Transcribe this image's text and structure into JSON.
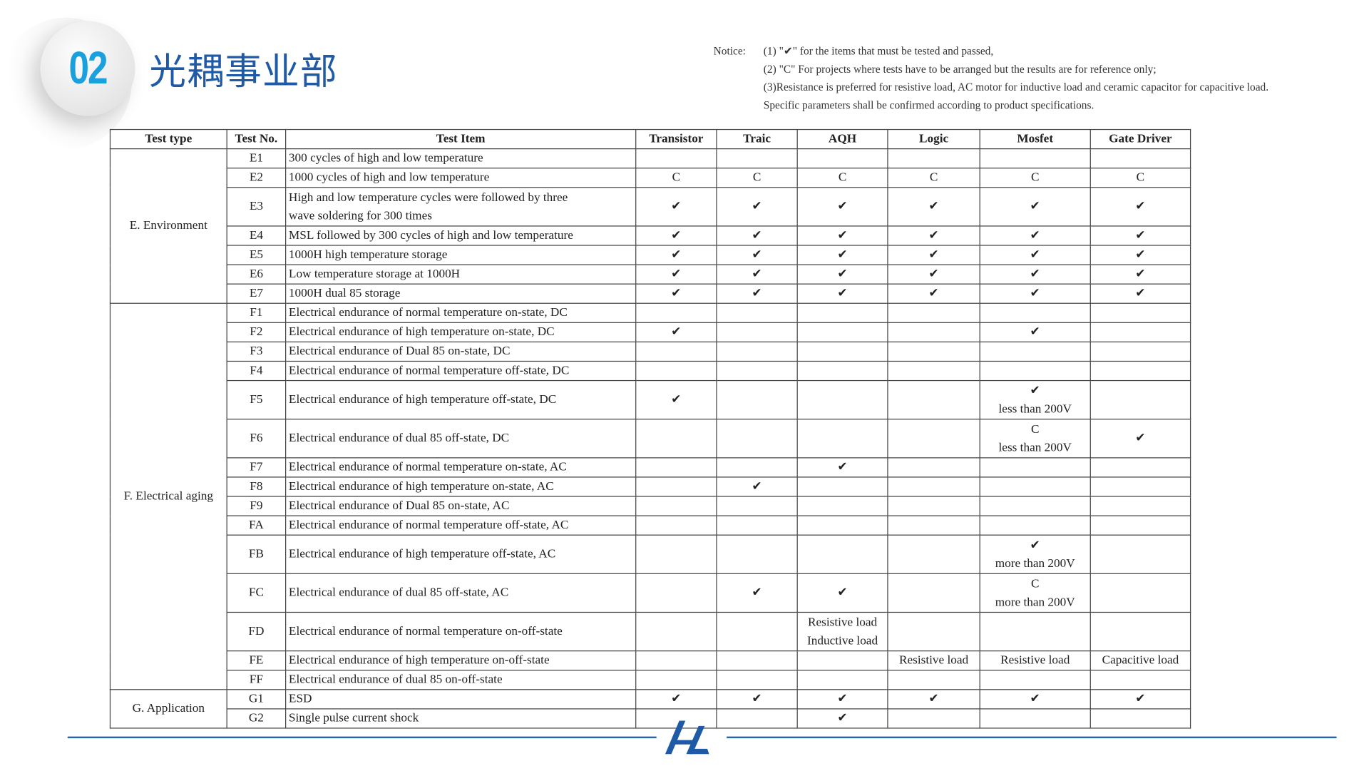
{
  "header": {
    "badge_number": "02",
    "title": "光耦事业部"
  },
  "notice": {
    "label": "Notice:",
    "lines": [
      "(1) \"✔\" for the items that must be tested and passed,",
      "(2) \"C\" For projects where tests have to be arranged but the results are for reference only;",
      "(3)Resistance is preferred for resistive load, AC motor for inductive load and ceramic capacitor for capacitive load.",
      " Specific parameters shall be confirmed according to product specifications."
    ]
  },
  "table": {
    "headers": [
      "Test type",
      "Test No.",
      "Test Item",
      "Transistor",
      "Traic",
      "AQH",
      "Logic",
      "Mosfet",
      "Gate Driver"
    ],
    "groups": [
      {
        "type": "E. Environment",
        "rows": [
          {
            "no": "E1",
            "item": "300 cycles of high and low temperature",
            "cells": [
              "",
              "",
              "",
              "",
              "",
              ""
            ]
          },
          {
            "no": "E2",
            "item": "1000 cycles of high and low temperature",
            "cells": [
              "C",
              "C",
              "C",
              "C",
              "C",
              "C"
            ]
          },
          {
            "no": "E3",
            "item": "High and low temperature cycles were followed by three\nwave soldering for 300 times",
            "cells": [
              "✔",
              "✔",
              "✔",
              "✔",
              "✔",
              "✔"
            ]
          },
          {
            "no": "E4",
            "item": "MSL followed by 300 cycles of high and low temperature",
            "cells": [
              "✔",
              "✔",
              "✔",
              "✔",
              "✔",
              "✔"
            ]
          },
          {
            "no": "E5",
            "item": "1000H high temperature storage",
            "cells": [
              "✔",
              "✔",
              "✔",
              "✔",
              "✔",
              "✔"
            ]
          },
          {
            "no": "E6",
            "item": "Low temperature storage at 1000H",
            "cells": [
              "✔",
              "✔",
              "✔",
              "✔",
              "✔",
              "✔"
            ]
          },
          {
            "no": "E7",
            "item": "1000H dual 85 storage",
            "cells": [
              "✔",
              "✔",
              "✔",
              "✔",
              "✔",
              "✔"
            ]
          }
        ]
      },
      {
        "type": "F. Electrical aging",
        "rows": [
          {
            "no": "F1",
            "item": "Electrical endurance of normal temperature on-state, DC",
            "cells": [
              "",
              "",
              "",
              "",
              "",
              ""
            ]
          },
          {
            "no": "F2",
            "item": "Electrical endurance of high temperature on-state, DC",
            "cells": [
              "✔",
              "",
              "",
              "",
              "✔",
              ""
            ]
          },
          {
            "no": "F3",
            "item": "Electrical endurance of Dual 85 on-state, DC",
            "cells": [
              "",
              "",
              "",
              "",
              "",
              ""
            ]
          },
          {
            "no": "F4",
            "item": "Electrical endurance of normal temperature off-state, DC",
            "cells": [
              "",
              "",
              "",
              "",
              "",
              ""
            ]
          },
          {
            "no": "F5",
            "item": "Electrical endurance of high temperature off-state, DC",
            "cells": [
              "✔",
              "",
              "",
              "",
              "✔\nless than 200V",
              ""
            ]
          },
          {
            "no": "F6",
            "item": "Electrical endurance of dual 85 off-state, DC",
            "cells": [
              "",
              "",
              "",
              "",
              "C\nless than 200V",
              "✔"
            ]
          },
          {
            "no": "F7",
            "item": "Electrical endurance of normal temperature on-state, AC",
            "cells": [
              "",
              "",
              "✔",
              "",
              "",
              ""
            ]
          },
          {
            "no": "F8",
            "item": "Electrical endurance of high temperature on-state, AC",
            "cells": [
              "",
              "✔",
              "",
              "",
              "",
              ""
            ]
          },
          {
            "no": "F9",
            "item": "Electrical endurance of Dual 85 on-state, AC",
            "cells": [
              "",
              "",
              "",
              "",
              "",
              ""
            ]
          },
          {
            "no": "FA",
            "item": "Electrical endurance of normal temperature off-state, AC",
            "cells": [
              "",
              "",
              "",
              "",
              "",
              ""
            ]
          },
          {
            "no": "FB",
            "item": "Electrical endurance of high temperature off-state, AC",
            "cells": [
              "",
              "",
              "",
              "",
              "✔\nmore than 200V",
              ""
            ]
          },
          {
            "no": "FC",
            "item": "Electrical endurance of dual 85 off-state, AC",
            "cells": [
              "",
              "✔",
              "✔",
              "",
              "C\nmore than 200V",
              ""
            ]
          },
          {
            "no": "FD",
            "item": "Electrical endurance of normal temperature on-off-state",
            "cells": [
              "",
              "",
              "Resistive load\nInductive load",
              "",
              "",
              ""
            ]
          },
          {
            "no": "FE",
            "item": "Electrical endurance of high temperature on-off-state",
            "cells": [
              "",
              "",
              "",
              "Resistive load",
              "Resistive load",
              "Capacitive load"
            ]
          },
          {
            "no": "FF",
            "item": "Electrical endurance of dual 85 on-off-state",
            "cells": [
              "",
              "",
              "",
              "",
              "",
              ""
            ]
          }
        ]
      },
      {
        "type": "G. Application",
        "rows": [
          {
            "no": "G1",
            "item": "ESD",
            "cells": [
              "✔",
              "✔",
              "✔",
              "✔",
              "✔",
              "✔"
            ]
          },
          {
            "no": "G2",
            "item": "Single pulse current shock",
            "cells": [
              "",
              "",
              "✔",
              "",
              "",
              ""
            ]
          }
        ]
      }
    ]
  },
  "footer": {
    "logo_text": "HL",
    "accent_color": "#2a62ac"
  },
  "colors": {
    "title": "#1f5aa6",
    "badge_number": "#1aa0dd"
  }
}
